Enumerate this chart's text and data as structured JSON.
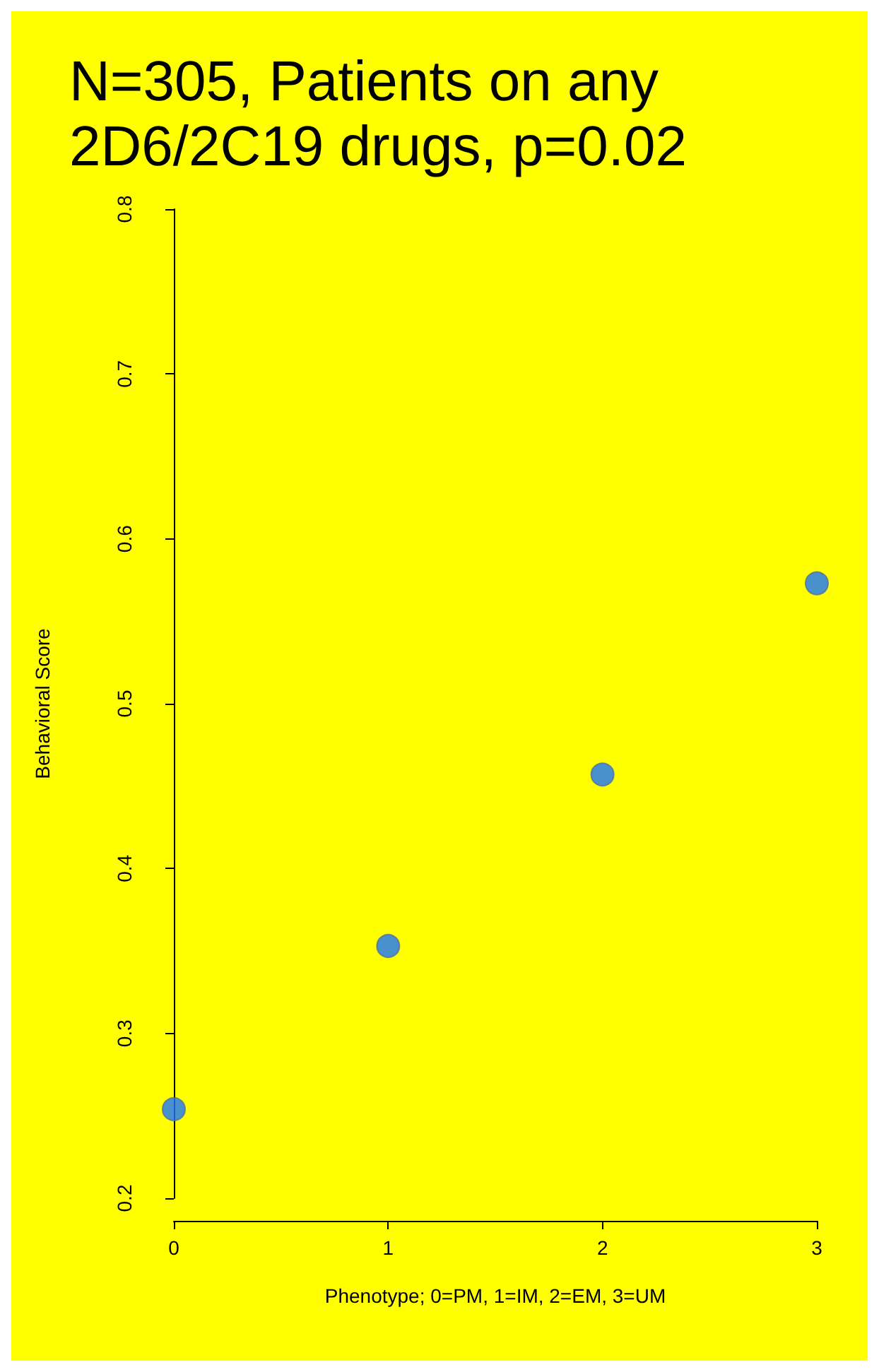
{
  "chart_data": {
    "type": "scatter",
    "title": "N=305, Patients on any 2D6/2C19 drugs, p=0.02",
    "xlabel": "Phenotype; 0=PM, 1=IM, 2=EM, 3=UM",
    "ylabel": "Behavioral Score",
    "x": [
      0,
      1,
      2,
      3
    ],
    "series": [
      {
        "color": "#1a75ff",
        "values": [
          0.254,
          0.353,
          0.457,
          0.573
        ]
      }
    ],
    "xlim": [
      0,
      3
    ],
    "xticks": [
      0,
      1,
      2,
      3
    ],
    "ylim": [
      0.2,
      0.8
    ],
    "yticks": [
      0.2,
      0.3,
      0.4,
      0.5,
      0.6,
      0.7,
      0.8
    ],
    "marker": "circle",
    "grid": false
  }
}
